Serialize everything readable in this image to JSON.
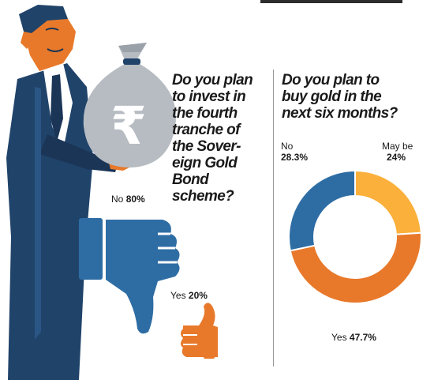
{
  "colors": {
    "navy": "#20436a",
    "orange": "#e8792a",
    "yellow": "#fbb03b",
    "blue": "#2e6da4",
    "grey": "#b6bcc2"
  },
  "icons": {
    "money_bag": "rupee-money-bag-icon",
    "thumb_down": "thumbs-down-icon",
    "thumb_up": "thumbs-up-icon"
  },
  "question_1": {
    "lines": [
      "Do you plan",
      "to invest in",
      "the fourth",
      "tranche of",
      "the Sover-",
      "eign Gold",
      "Bond",
      "scheme?"
    ]
  },
  "question_2": {
    "lines": [
      "Do you plan to",
      "buy gold in the",
      "next six months?"
    ]
  },
  "chart_data": [
    {
      "type": "bar",
      "title": "Do you plan to invest in the fourth tranche of the Sovereign Gold Bond scheme?",
      "categories": [
        "No",
        "Yes"
      ],
      "values": [
        80,
        20
      ],
      "labels": {
        "no_text": "No",
        "no_value": "80%",
        "yes_text": "Yes",
        "yes_value": "20%"
      }
    },
    {
      "type": "pie",
      "title": "Do you plan to buy gold in the next six months?",
      "categories": [
        "May be",
        "Yes",
        "No"
      ],
      "values": [
        24,
        47.7,
        28.3
      ],
      "colors": [
        "#fbb03b",
        "#e8792a",
        "#2e6da4"
      ],
      "labels": {
        "maybe_text": "May be",
        "maybe_value": "24%",
        "yes_text": "Yes",
        "yes_value": "47.7%",
        "no_text": "No",
        "no_value": "28.3%"
      }
    }
  ]
}
